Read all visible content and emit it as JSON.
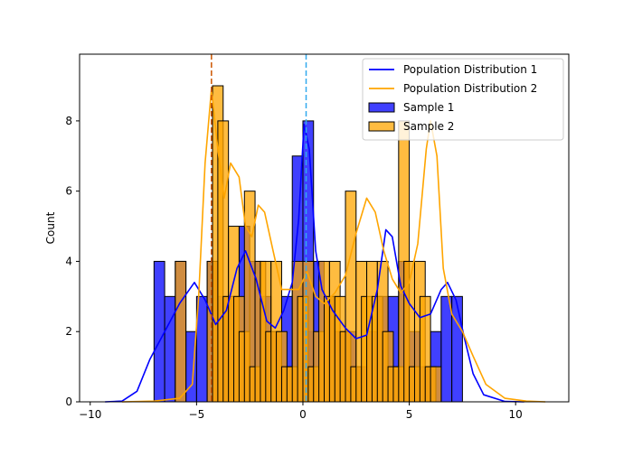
{
  "chart_data": {
    "type": "bar",
    "title": "",
    "xlabel": "",
    "ylabel": "Count",
    "xlim": [
      -10.5,
      12.5
    ],
    "ylim": [
      0,
      9.9
    ],
    "xticks": [
      -10,
      -5,
      0,
      5,
      10
    ],
    "yticks": [
      0,
      2,
      4,
      6,
      8
    ],
    "grid": false,
    "legend_position": "top-right",
    "legend": [
      {
        "label": "Population Distribution 1",
        "kind": "line",
        "color": "#0000ff"
      },
      {
        "label": "Population Distribution 2",
        "kind": "line",
        "color": "#ffa500"
      },
      {
        "label": "Sample 1",
        "kind": "patch",
        "color": "#0000ff"
      },
      {
        "label": "Sample 2",
        "kind": "patch",
        "color": "#ffa500"
      }
    ],
    "series": [
      {
        "name": "Sample 1",
        "kind": "histogram",
        "color": "#0000ff",
        "bin_width": 0.5,
        "bins": [
          [
            -7.0,
            4
          ],
          [
            -6.5,
            3
          ],
          [
            -6.0,
            4
          ],
          [
            -5.5,
            2
          ],
          [
            -5.0,
            3
          ],
          [
            -4.5,
            4
          ],
          [
            -4.0,
            3
          ],
          [
            -3.5,
            3
          ],
          [
            -3.0,
            5
          ],
          [
            -2.5,
            4
          ],
          [
            -2.0,
            3
          ],
          [
            -1.5,
            2
          ],
          [
            -1.0,
            3
          ],
          [
            -0.5,
            7
          ],
          [
            -0.0,
            2
          ],
          [
            0.0,
            8
          ],
          [
            0.5,
            4
          ],
          [
            1.0,
            3
          ],
          [
            1.5,
            2
          ],
          [
            2.0,
            2
          ],
          [
            2.5,
            1
          ],
          [
            3.0,
            2
          ],
          [
            3.5,
            3
          ],
          [
            4.0,
            3
          ],
          [
            4.5,
            4
          ],
          [
            5.0,
            2
          ],
          [
            5.5,
            1
          ],
          [
            6.0,
            2
          ],
          [
            6.5,
            3
          ],
          [
            7.0,
            3
          ]
        ]
      },
      {
        "name": "Sample 2",
        "kind": "histogram",
        "color": "#ffa500",
        "bin_width": 0.5,
        "bins": [
          [
            -6.0,
            4
          ],
          [
            -4.5,
            4
          ],
          [
            -4.25,
            9
          ],
          [
            -4.0,
            8
          ],
          [
            -3.75,
            3
          ],
          [
            -3.5,
            5
          ],
          [
            -3.25,
            3
          ],
          [
            -3.0,
            2
          ],
          [
            -2.75,
            6
          ],
          [
            -2.5,
            1
          ],
          [
            -2.25,
            4
          ],
          [
            -2.0,
            4
          ],
          [
            -1.75,
            2
          ],
          [
            -1.5,
            4
          ],
          [
            -1.25,
            2
          ],
          [
            -1.0,
            1
          ],
          [
            -0.75,
            1
          ],
          [
            -0.5,
            4
          ],
          [
            -0.25,
            3
          ],
          [
            0.0,
            4
          ],
          [
            0.25,
            1
          ],
          [
            0.5,
            2
          ],
          [
            0.75,
            4
          ],
          [
            1.0,
            3
          ],
          [
            1.25,
            4
          ],
          [
            1.5,
            3
          ],
          [
            1.75,
            2
          ],
          [
            2.0,
            6
          ],
          [
            2.25,
            1
          ],
          [
            2.5,
            4
          ],
          [
            2.75,
            3
          ],
          [
            3.0,
            4
          ],
          [
            3.25,
            3
          ],
          [
            3.5,
            4
          ],
          [
            3.75,
            2
          ],
          [
            4.0,
            1
          ],
          [
            4.25,
            1
          ],
          [
            4.5,
            8
          ],
          [
            4.75,
            4
          ],
          [
            5.0,
            1
          ],
          [
            5.25,
            4
          ],
          [
            5.5,
            3
          ],
          [
            5.75,
            1
          ],
          [
            6.0,
            1
          ]
        ]
      },
      {
        "name": "Population Distribution 1",
        "kind": "kde",
        "color": "#0000ff",
        "points": [
          [
            -9.3,
            0
          ],
          [
            -8.5,
            0.02
          ],
          [
            -7.8,
            0.3
          ],
          [
            -7.2,
            1.2
          ],
          [
            -6.5,
            2.0
          ],
          [
            -5.8,
            2.8
          ],
          [
            -5.1,
            3.4
          ],
          [
            -4.6,
            2.9
          ],
          [
            -4.1,
            2.2
          ],
          [
            -3.6,
            2.6
          ],
          [
            -3.1,
            3.8
          ],
          [
            -2.7,
            4.3
          ],
          [
            -2.2,
            3.5
          ],
          [
            -1.7,
            2.3
          ],
          [
            -1.3,
            2.1
          ],
          [
            -0.9,
            2.6
          ],
          [
            -0.5,
            3.4
          ],
          [
            -0.2,
            5.2
          ],
          [
            0.05,
            7.9
          ],
          [
            0.3,
            7.2
          ],
          [
            0.6,
            4.3
          ],
          [
            0.9,
            3.2
          ],
          [
            1.4,
            2.6
          ],
          [
            2.0,
            2.1
          ],
          [
            2.5,
            1.8
          ],
          [
            3.0,
            1.9
          ],
          [
            3.5,
            3.2
          ],
          [
            3.9,
            4.9
          ],
          [
            4.2,
            4.7
          ],
          [
            4.6,
            3.3
          ],
          [
            5.0,
            2.8
          ],
          [
            5.5,
            2.4
          ],
          [
            6.0,
            2.5
          ],
          [
            6.5,
            3.2
          ],
          [
            6.8,
            3.4
          ],
          [
            7.2,
            2.9
          ],
          [
            7.6,
            1.8
          ],
          [
            8.0,
            0.8
          ],
          [
            8.5,
            0.2
          ],
          [
            9.5,
            0.01
          ],
          [
            10.4,
            0
          ]
        ]
      },
      {
        "name": "Population Distribution 2",
        "kind": "kde",
        "color": "#ffa500",
        "points": [
          [
            -8.5,
            0
          ],
          [
            -7.0,
            0.02
          ],
          [
            -5.8,
            0.1
          ],
          [
            -5.2,
            0.5
          ],
          [
            -4.9,
            3.0
          ],
          [
            -4.6,
            6.8
          ],
          [
            -4.3,
            8.9
          ],
          [
            -4.0,
            7.2
          ],
          [
            -3.7,
            5.8
          ],
          [
            -3.4,
            6.8
          ],
          [
            -3.0,
            6.4
          ],
          [
            -2.7,
            5.0
          ],
          [
            -2.4,
            4.7
          ],
          [
            -2.1,
            5.6
          ],
          [
            -1.8,
            5.4
          ],
          [
            -1.4,
            4.3
          ],
          [
            -1.0,
            3.2
          ],
          [
            -0.6,
            3.2
          ],
          [
            -0.2,
            3.2
          ],
          [
            0.2,
            3.7
          ],
          [
            0.6,
            3.0
          ],
          [
            1.0,
            2.8
          ],
          [
            1.5,
            3.1
          ],
          [
            2.0,
            3.6
          ],
          [
            2.5,
            4.8
          ],
          [
            3.0,
            5.8
          ],
          [
            3.4,
            5.4
          ],
          [
            3.8,
            4.3
          ],
          [
            4.2,
            3.5
          ],
          [
            4.6,
            3.1
          ],
          [
            5.0,
            3.4
          ],
          [
            5.4,
            4.5
          ],
          [
            5.8,
            7.2
          ],
          [
            6.0,
            8.0
          ],
          [
            6.3,
            7.0
          ],
          [
            6.6,
            3.8
          ],
          [
            7.0,
            2.5
          ],
          [
            7.5,
            2.0
          ],
          [
            8.0,
            1.3
          ],
          [
            8.6,
            0.5
          ],
          [
            9.5,
            0.1
          ],
          [
            10.5,
            0.02
          ],
          [
            11.4,
            0
          ]
        ]
      }
    ],
    "vlines": [
      {
        "x": -4.3,
        "color": "#cc5500",
        "style": "dashed"
      },
      {
        "x": 0.15,
        "color": "#33aaee",
        "style": "dashed"
      }
    ]
  }
}
